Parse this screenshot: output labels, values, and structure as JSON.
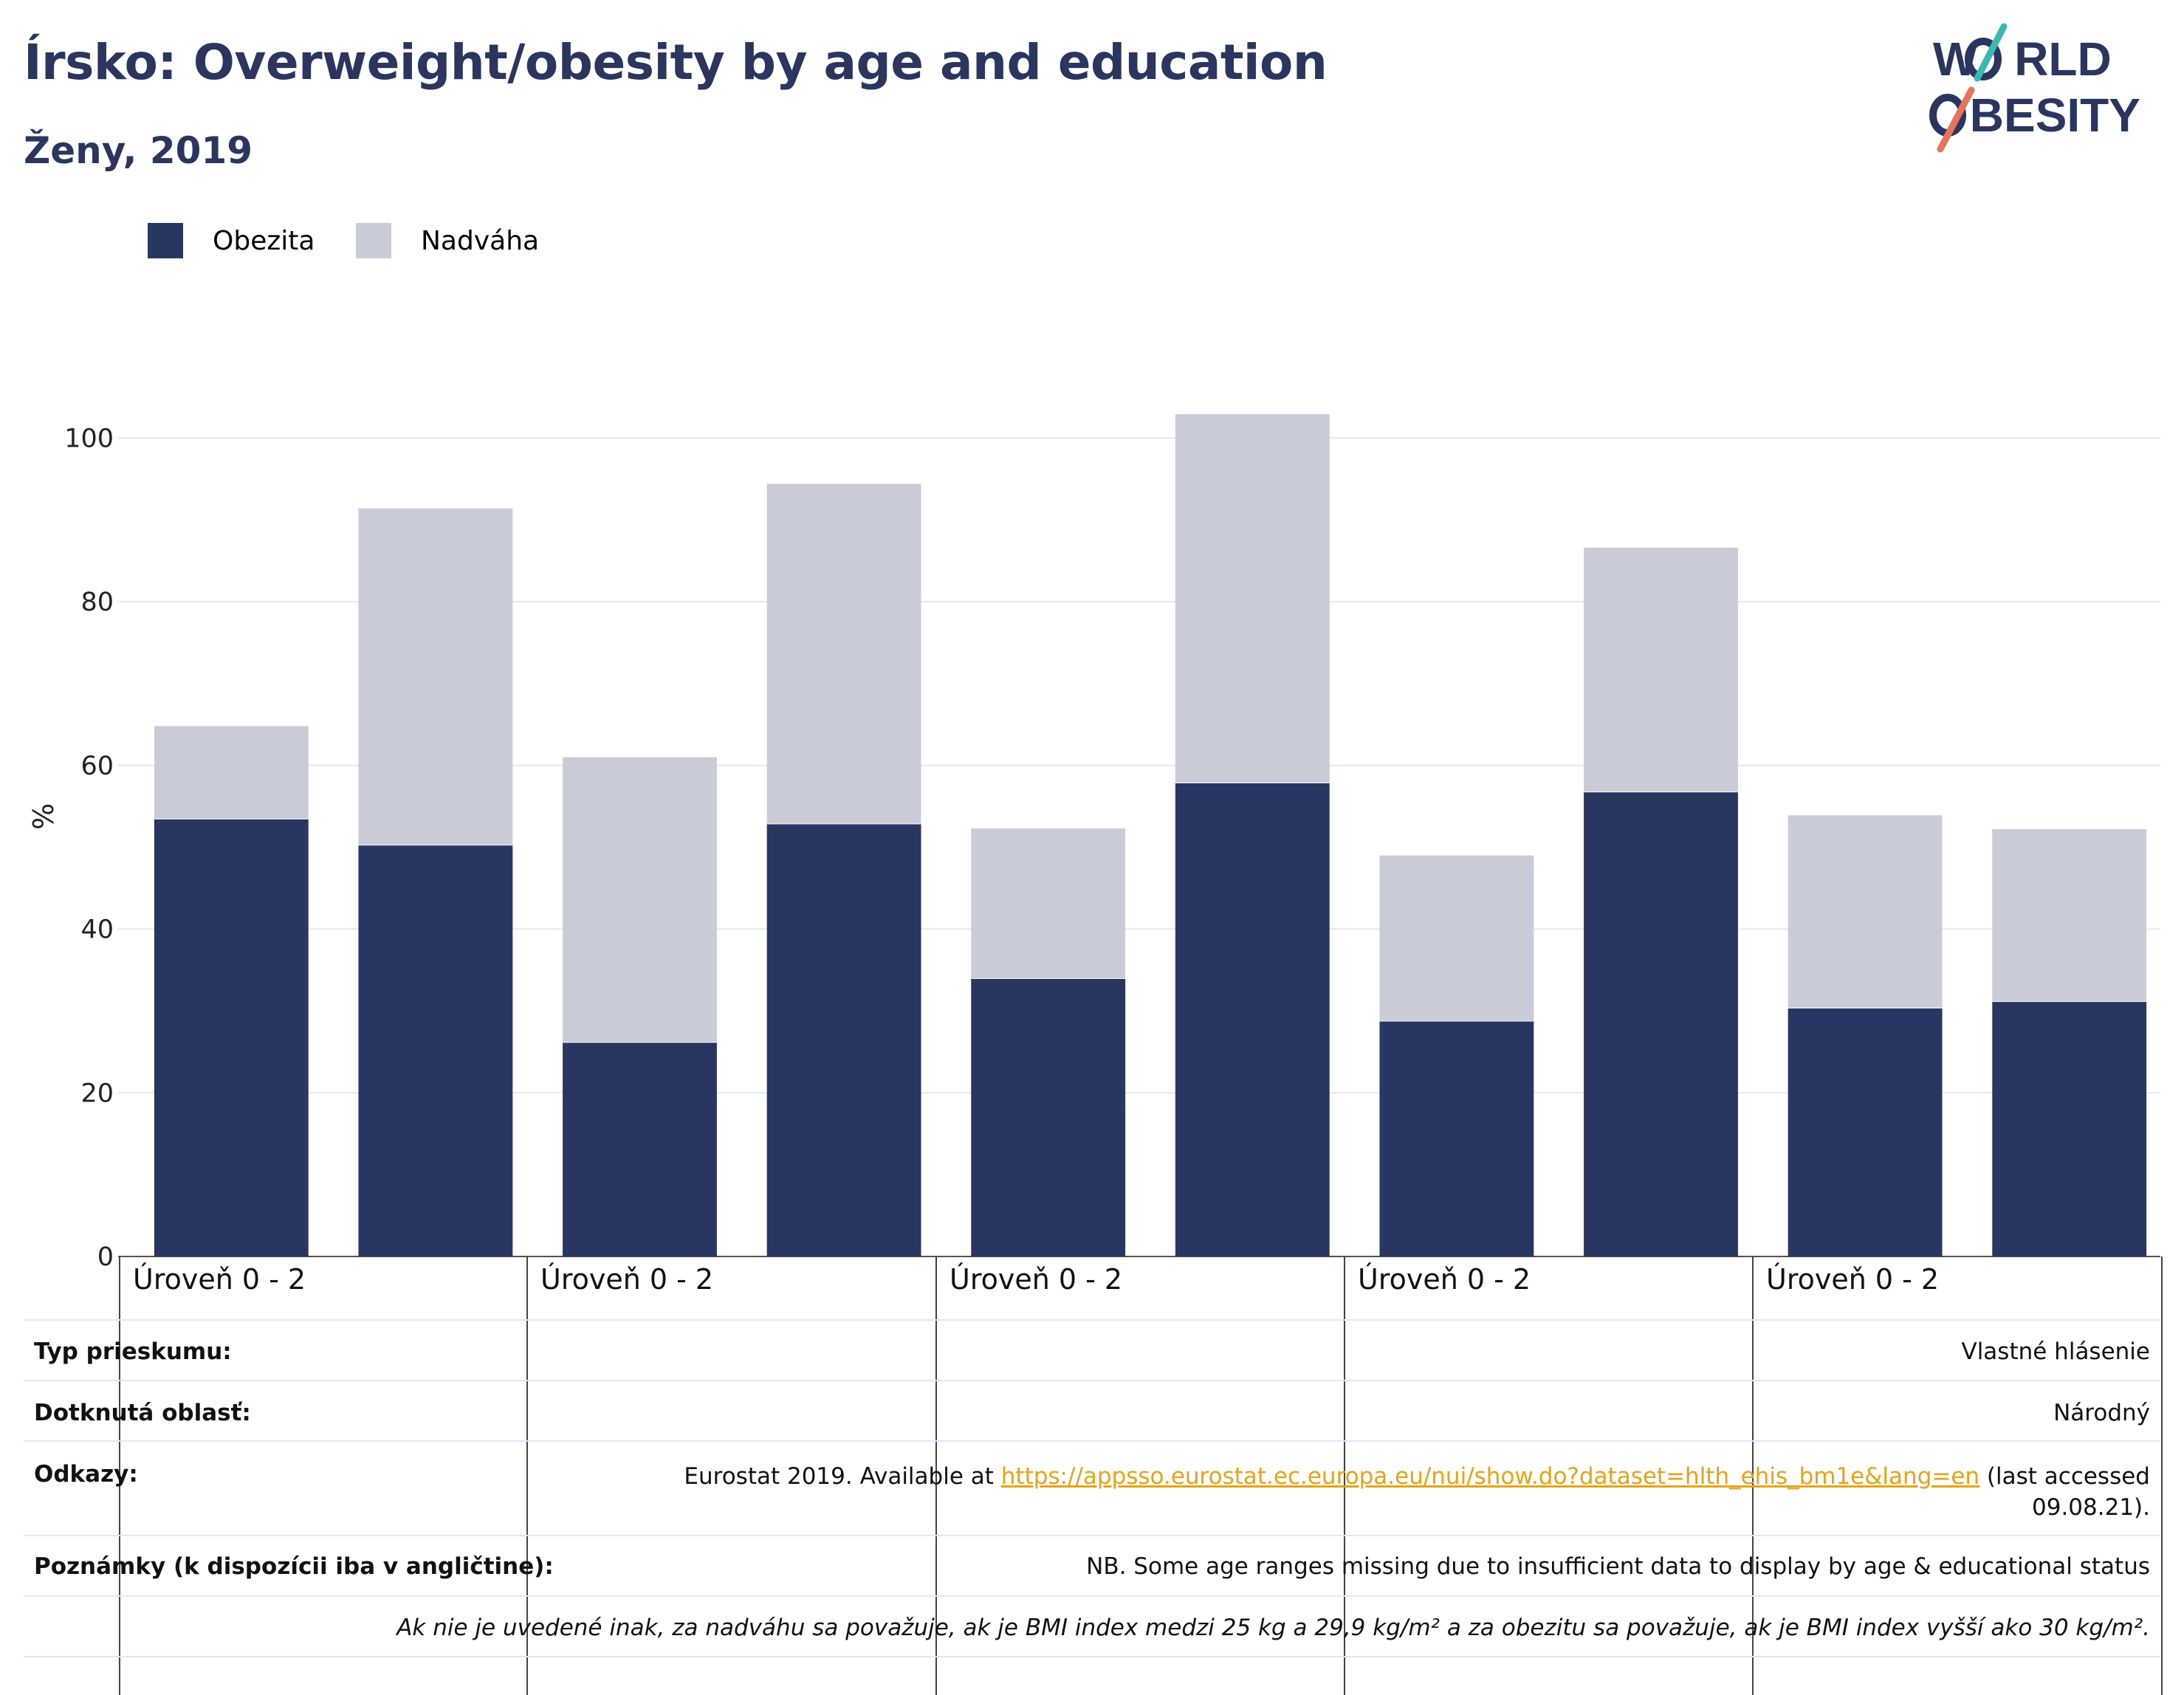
{
  "title": "Írsko: Overweight/obesity by age and education",
  "subtitle": "Ženy, 2019",
  "logo": {
    "line1": "WORLD",
    "line2": "OBESITY"
  },
  "colors": {
    "obesity": "#2a3662",
    "overweight": "#c9cbd6",
    "title": "#2a3560",
    "link": "#e8a317"
  },
  "legend": [
    {
      "label": "Obezita",
      "color": "#2a3662"
    },
    {
      "label": "Nadváha",
      "color": "#c9cbd6"
    }
  ],
  "chart_data": {
    "type": "bar",
    "stacked": true,
    "ylabel": "%",
    "ylim": [
      0,
      103
    ],
    "yticks": [
      0,
      20,
      40,
      60,
      80,
      100
    ],
    "grid": true,
    "legend_position": "top-left",
    "group_labels": [
      "Úroveň 0 - 2",
      "Úroveň 0 - 2",
      "Úroveň 0 - 2",
      "Úroveň 0 - 2",
      "Úroveň 0 - 2"
    ],
    "bars_per_group": 2,
    "series": [
      {
        "name": "Obezita",
        "values": [
          53.5,
          50.3,
          26.2,
          52.9,
          34.0,
          57.9,
          28.8,
          56.8,
          30.4,
          31.2
        ]
      },
      {
        "name": "Nadváha",
        "values": [
          11.3,
          41.1,
          34.8,
          41.5,
          18.3,
          45.0,
          20.2,
          29.8,
          23.5,
          21.0
        ]
      }
    ]
  },
  "table": {
    "survey_type": {
      "label": "Typ prieskumu:",
      "value": "Vlastné hlásenie"
    },
    "area": {
      "label": "Dotknutá oblasť:",
      "value": "Národný"
    },
    "references": {
      "label": "Odkazy:",
      "prefix": "Eurostat 2019. Available at ",
      "link": "https://appsso.eurostat.ec.europa.eu/nui/show.do?dataset=hlth_ehis_bm1e&lang=en",
      "suffix": " (last accessed",
      "line2": "09.08.21)."
    },
    "notes": {
      "label": "Poznámky (k dispozícii iba v angličtine):",
      "value": "NB. Some age ranges missing due to insufficient data to display by age & educational status"
    },
    "footnote": "Ak nie je uvedené inak, za nadváhu sa považuje, ak je BMI index medzi 25 kg a 29,9 kg/m² a za obezitu sa považuje, ak je BMI index vyšší ako 30 kg/m²."
  }
}
